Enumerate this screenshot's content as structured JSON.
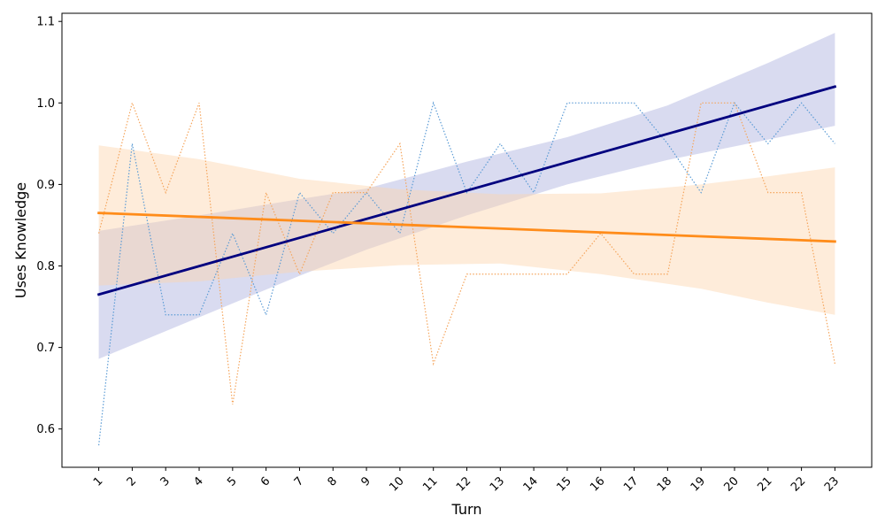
{
  "chart_data": {
    "type": "line",
    "title": "",
    "xlabel": "Turn",
    "ylabel": "Uses Knowledge",
    "categories": [
      "1",
      "2",
      "3",
      "4",
      "5",
      "6",
      "7",
      "8",
      "9",
      "10",
      "11",
      "12",
      "13",
      "14",
      "15",
      "16",
      "17",
      "18",
      "19",
      "20",
      "21",
      "22",
      "23"
    ],
    "xlim": [
      -0.1,
      24.1
    ],
    "ylim": [
      0.553,
      1.11
    ],
    "yticks": [
      0.6,
      0.7,
      0.8,
      0.9,
      1.0,
      1.1
    ],
    "ytick_labels": [
      "0.6",
      "0.7",
      "0.8",
      "0.9",
      "1.0",
      "1.1"
    ],
    "grid": false,
    "series": [
      {
        "name": "series-blue",
        "color": "#5b9bd5",
        "style": "dotted",
        "x": [
          1,
          2,
          3,
          4,
          5,
          6,
          7,
          8,
          9,
          10,
          11,
          12,
          13,
          14,
          15,
          16,
          17,
          18,
          19,
          20,
          21,
          22,
          23
        ],
        "values": [
          0.58,
          0.95,
          0.74,
          0.74,
          0.84,
          0.74,
          0.89,
          0.84,
          0.89,
          0.84,
          1.0,
          0.89,
          0.95,
          0.89,
          1.0,
          1.0,
          1.0,
          0.95,
          0.89,
          1.0,
          0.95,
          1.0,
          0.95
        ]
      },
      {
        "name": "series-orange",
        "color": "#f5a55c",
        "style": "dotted",
        "x": [
          1,
          2,
          3,
          4,
          5,
          6,
          7,
          8,
          9,
          10,
          11,
          12,
          13,
          14,
          15,
          16,
          17,
          18,
          19,
          20,
          21,
          22,
          23
        ],
        "values": [
          0.84,
          1.0,
          0.89,
          1.0,
          0.63,
          0.89,
          0.79,
          0.89,
          0.89,
          0.95,
          0.68,
          0.79,
          0.79,
          0.79,
          0.79,
          0.84,
          0.79,
          0.79,
          1.0,
          1.0,
          0.89,
          0.89,
          0.68
        ]
      }
    ],
    "trends": [
      {
        "name": "trend-blue",
        "line_color": "#00007f",
        "band_color": "#aab0de",
        "x_range": [
          1,
          23
        ],
        "y_start": 0.765,
        "y_end": 1.02,
        "band": [
          {
            "x": 1,
            "lo": 0.686,
            "hi": 0.843
          },
          {
            "x": 4,
            "lo": 0.737,
            "hi": 0.862
          },
          {
            "x": 7,
            "lo": 0.788,
            "hi": 0.882
          },
          {
            "x": 9,
            "lo": 0.82,
            "hi": 0.895
          },
          {
            "x": 12,
            "lo": 0.862,
            "hi": 0.928
          },
          {
            "x": 15,
            "lo": 0.9,
            "hi": 0.958
          },
          {
            "x": 18,
            "lo": 0.93,
            "hi": 0.997
          },
          {
            "x": 21,
            "lo": 0.955,
            "hi": 1.049
          },
          {
            "x": 23,
            "lo": 0.972,
            "hi": 1.086
          }
        ]
      },
      {
        "name": "trend-orange",
        "line_color": "#ff8c1a",
        "band_color": "#fdd5ae",
        "x_range": [
          1,
          23
        ],
        "y_start": 0.865,
        "y_end": 0.83,
        "band": [
          {
            "x": 1,
            "lo": 0.776,
            "hi": 0.948
          },
          {
            "x": 4,
            "lo": 0.781,
            "hi": 0.931
          },
          {
            "x": 7,
            "lo": 0.793,
            "hi": 0.907
          },
          {
            "x": 10,
            "lo": 0.801,
            "hi": 0.894
          },
          {
            "x": 13,
            "lo": 0.803,
            "hi": 0.888
          },
          {
            "x": 16,
            "lo": 0.79,
            "hi": 0.889
          },
          {
            "x": 19,
            "lo": 0.772,
            "hi": 0.9
          },
          {
            "x": 21,
            "lo": 0.755,
            "hi": 0.91
          },
          {
            "x": 23,
            "lo": 0.74,
            "hi": 0.921
          }
        ]
      }
    ]
  }
}
